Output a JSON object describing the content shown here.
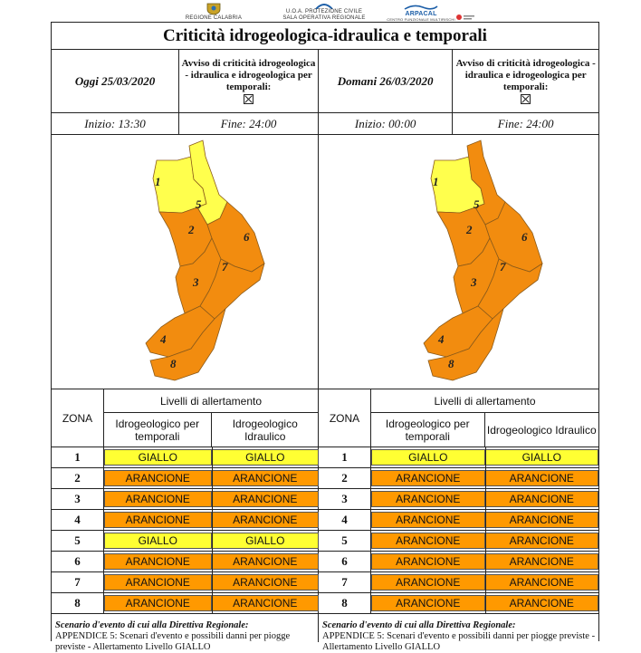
{
  "logos": {
    "regione": "REGIONE CALABRIA",
    "protezione_line1": "U.O.A. PROTEZIONE CIVILE",
    "protezione_line2": "SALA OPERATIVA REGIONALE",
    "arpacal": "ARPACAL",
    "arpacal_sub": "CENTRO FUNZIONALE MULTIRISCHI"
  },
  "title": "Criticità idrogeologica-idraulica e temporali",
  "colors": {
    "giallo": "#ffff33",
    "arancione": "#ff9900",
    "map_giallo": "#ffff4d",
    "map_arancione": "#f28c0f"
  },
  "panels": [
    {
      "date": "Oggi 25/03/2020",
      "avviso": "Avviso di criticità idrogeologica - idraulica e idrogeologica per temporali:",
      "inizio": "Inizio: 13:30",
      "fine": "Fine: 24:00",
      "zone_labels": [
        "1",
        "2",
        "3",
        "4",
        "5",
        "6",
        "7",
        "8"
      ],
      "map_levels": [
        "giallo",
        "arancione",
        "arancione",
        "arancione",
        "giallo",
        "arancione",
        "arancione",
        "arancione"
      ],
      "table": {
        "zona_header": "ZONA",
        "livelli_header": "Livelli di allertamento",
        "col1": "Idrogeologico per temporali",
        "col2": "Idrogeologico Idraulico",
        "rows": [
          {
            "zona": "1",
            "a": "GIALLO",
            "b": "GIALLO",
            "la": "giallo",
            "lb": "giallo"
          },
          {
            "zona": "2",
            "a": "ARANCIONE",
            "b": "ARANCIONE",
            "la": "arancione",
            "lb": "arancione"
          },
          {
            "zona": "3",
            "a": "ARANCIONE",
            "b": "ARANCIONE",
            "la": "arancione",
            "lb": "arancione"
          },
          {
            "zona": "4",
            "a": "ARANCIONE",
            "b": "ARANCIONE",
            "la": "arancione",
            "lb": "arancione"
          },
          {
            "zona": "5",
            "a": "GIALLO",
            "b": "GIALLO",
            "la": "giallo",
            "lb": "giallo"
          },
          {
            "zona": "6",
            "a": "ARANCIONE",
            "b": "ARANCIONE",
            "la": "arancione",
            "lb": "arancione"
          },
          {
            "zona": "7",
            "a": "ARANCIONE",
            "b": "ARANCIONE",
            "la": "arancione",
            "lb": "arancione"
          },
          {
            "zona": "8",
            "a": "ARANCIONE",
            "b": "ARANCIONE",
            "la": "arancione",
            "lb": "arancione"
          }
        ]
      },
      "scenario_title": "Scenario d'evento di cui alla Direttiva Regionale:",
      "scenario_text": "APPENDICE 5: Scenari d'evento e possibili danni per piogge previste - Allertamento Livello GIALLO"
    },
    {
      "date": "Domani 26/03/2020",
      "avviso": "Avviso di criticità idrogeologica - idraulica e idrogeologica per temporali:",
      "inizio": "Inizio: 00:00",
      "fine": "Fine: 24:00",
      "zone_labels": [
        "1",
        "2",
        "3",
        "4",
        "5",
        "6",
        "7",
        "8"
      ],
      "map_levels": [
        "giallo",
        "arancione",
        "arancione",
        "arancione",
        "arancione",
        "arancione",
        "arancione",
        "arancione"
      ],
      "table": {
        "zona_header": "ZONA",
        "livelli_header": "Livelli di allertamento",
        "col1": "Idrogeologico per temporali",
        "col2": "Idrogeologico Idraulico",
        "rows": [
          {
            "zona": "1",
            "a": "GIALLO",
            "b": "GIALLO",
            "la": "giallo",
            "lb": "giallo"
          },
          {
            "zona": "2",
            "a": "ARANCIONE",
            "b": "ARANCIONE",
            "la": "arancione",
            "lb": "arancione"
          },
          {
            "zona": "3",
            "a": "ARANCIONE",
            "b": "ARANCIONE",
            "la": "arancione",
            "lb": "arancione"
          },
          {
            "zona": "4",
            "a": "ARANCIONE",
            "b": "ARANCIONE",
            "la": "arancione",
            "lb": "arancione"
          },
          {
            "zona": "5",
            "a": "ARANCIONE",
            "b": "ARANCIONE",
            "la": "arancione",
            "lb": "arancione"
          },
          {
            "zona": "6",
            "a": "ARANCIONE",
            "b": "ARANCIONE",
            "la": "arancione",
            "lb": "arancione"
          },
          {
            "zona": "7",
            "a": "ARANCIONE",
            "b": "ARANCIONE",
            "la": "arancione",
            "lb": "arancione"
          },
          {
            "zona": "8",
            "a": "ARANCIONE",
            "b": "ARANCIONE",
            "la": "arancione",
            "lb": "arancione"
          }
        ]
      },
      "scenario_title": "Scenario d'evento di cui alla Direttiva Regionale:",
      "scenario_text": "APPENDICE 5: Scenari d'evento e possibili danni per piogge previste - Allertamento Livello GIALLO"
    }
  ]
}
